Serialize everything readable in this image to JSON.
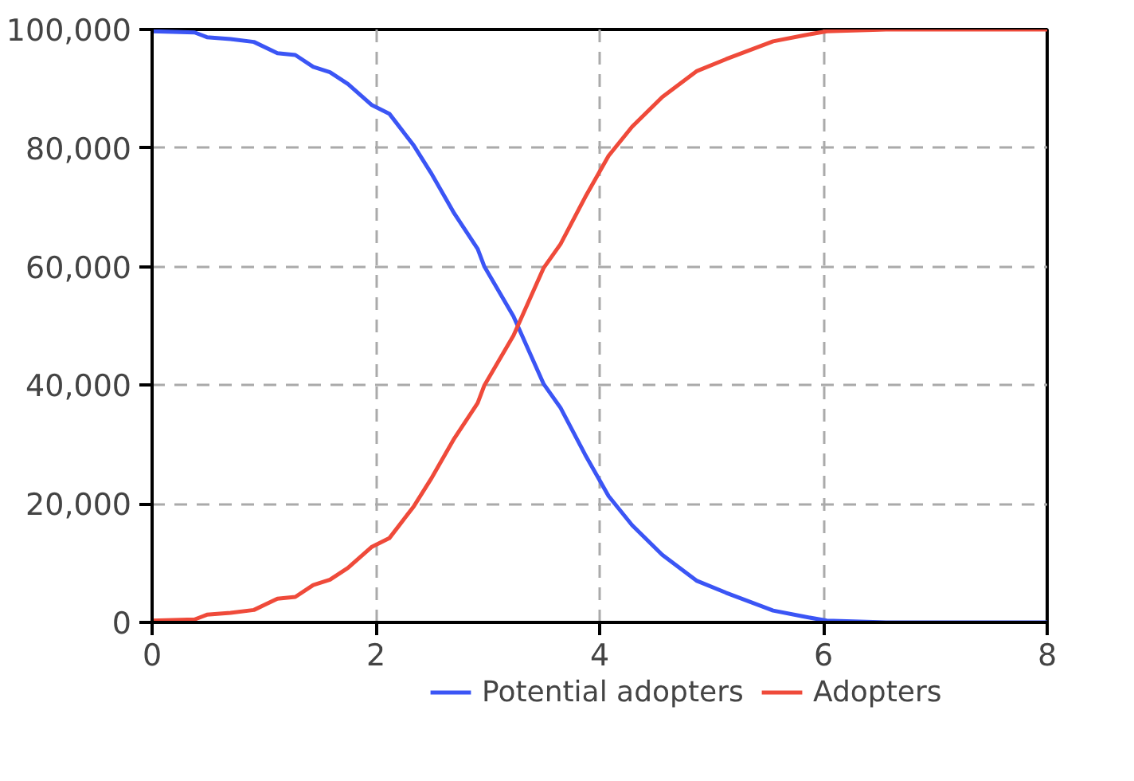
{
  "chart_data": {
    "type": "line",
    "x": [
      0,
      0.38,
      0.49,
      0.7,
      0.91,
      1.12,
      1.28,
      1.44,
      1.59,
      1.75,
      1.96,
      2.12,
      2.34,
      2.49,
      2.7,
      2.91,
      2.97,
      3.23,
      3.5,
      3.65,
      3.87,
      4.08,
      4.29,
      4.56,
      4.87,
      5.13,
      5.55,
      5.82,
      6.03,
      6.56,
      7,
      8
    ],
    "series": [
      {
        "name": "Potential adopters",
        "color": "#3b55f5",
        "values": [
          99700,
          99500,
          98700,
          98400,
          97900,
          96000,
          95700,
          93700,
          92800,
          90800,
          87300,
          85800,
          80400,
          75900,
          69000,
          63000,
          60000,
          51600,
          40200,
          36200,
          28300,
          21300,
          16400,
          11400,
          7000,
          5000,
          2000,
          1000,
          300,
          0,
          0,
          0
        ]
      },
      {
        "name": "Adopters",
        "color": "#ef4a3a",
        "values": [
          300,
          500,
          1300,
          1600,
          2100,
          4000,
          4300,
          6300,
          7200,
          9200,
          12700,
          14200,
          19600,
          24100,
          31000,
          37000,
          40000,
          48400,
          59800,
          63800,
          71700,
          78700,
          83600,
          88600,
          93000,
          95000,
          98000,
          99000,
          99700,
          100000,
          100000,
          100000
        ]
      }
    ],
    "xlim": [
      0,
      8
    ],
    "ylim": [
      0,
      100000
    ],
    "xticks": [
      0,
      2,
      4,
      6,
      8
    ],
    "yticks": [
      {
        "value": 0,
        "label": "0"
      },
      {
        "value": 20000,
        "label": "20,000"
      },
      {
        "value": 40000,
        "label": "40,000"
      },
      {
        "value": 60000,
        "label": "60,000"
      },
      {
        "value": 80000,
        "label": "80,000"
      },
      {
        "value": 100000,
        "label": "100,000"
      }
    ],
    "grid": true,
    "legend": "bottom",
    "line_style": "solid"
  }
}
